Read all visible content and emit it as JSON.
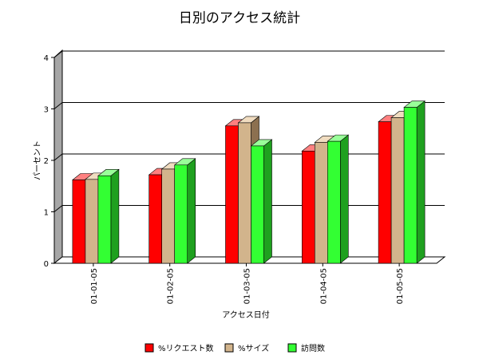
{
  "chart_data": {
    "type": "bar",
    "title": "日別のアクセス統計",
    "xlabel": "アクセス日付",
    "ylabel": "パーセント",
    "categories": [
      "01-01-05",
      "01-02-05",
      "01-03-05",
      "01-04-05",
      "01-05-05"
    ],
    "yticks": [
      "0",
      "1",
      "2",
      "3",
      "4"
    ],
    "ylim": [
      0,
      4
    ],
    "grid": true,
    "legend_position": "bottom",
    "series": [
      {
        "name": "%リクエスト数",
        "values": [
          1.62,
          1.72,
          2.67,
          2.18,
          2.75
        ],
        "color": "#ff0000",
        "top_color": "#ff8080",
        "side_color": "#aa0000"
      },
      {
        "name": "%サイズ",
        "values": [
          1.63,
          1.83,
          2.73,
          2.35,
          2.83
        ],
        "color": "#d2b48c",
        "top_color": "#f0dcc0",
        "side_color": "#8c7050"
      },
      {
        "name": "訪問数",
        "values": [
          1.7,
          1.91,
          2.28,
          2.37,
          3.03
        ],
        "color": "#33ff33",
        "top_color": "#99ff99",
        "side_color": "#1fa01f"
      }
    ]
  }
}
